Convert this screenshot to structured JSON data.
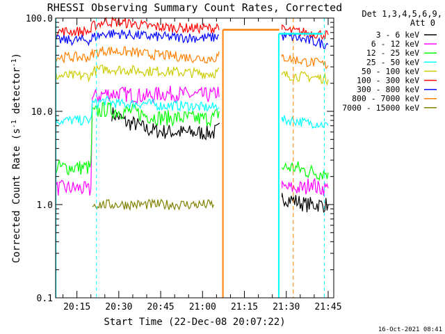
{
  "chart_data": {
    "type": "line",
    "title": "RHESSI Observing Summary Count Rates, Corrected",
    "xlabel": "Start Time (22-Dec-08 20:07:22)",
    "ylabel_main": "Corrected Count Rate (s",
    "ylabel_sup1": "-1",
    "ylabel_mid": " detector",
    "ylabel_sup2": "-1",
    "ylabel_end": ")",
    "yscale": "log",
    "ylim": [
      0.1,
      100.0
    ],
    "xlim_minutes": [
      7.37,
      107.0
    ],
    "y_ticks": [
      "0.1",
      "1.0",
      "10.0",
      "100.0"
    ],
    "x_ticks": [
      "20:15",
      "20:30",
      "20:45",
      "21:00",
      "21:15",
      "21:30",
      "21:45"
    ],
    "x_tick_minutes": [
      15,
      30,
      45,
      60,
      75,
      90,
      105
    ],
    "legend_header": [
      "Det 1,3,4,5,6,9,",
      "Att 0"
    ],
    "legend_position": "right",
    "grid": false,
    "footer": "16-Oct-2021 08:41",
    "series": [
      {
        "name": "3 - 6 keV",
        "color": "#000000",
        "points": [
          [
            27.5,
            9.5
          ],
          [
            30,
            8.7
          ],
          [
            33,
            7.5
          ],
          [
            36,
            7.3
          ],
          [
            40,
            6.4
          ],
          [
            45,
            6.1
          ],
          [
            50,
            6.0
          ],
          [
            55,
            5.9
          ],
          [
            60,
            5.9
          ],
          [
            64,
            5.9
          ],
          [
            66.5,
            6.5
          ],
          [
            88.5,
            1.2
          ],
          [
            93,
            1.1
          ],
          [
            97,
            1.0
          ],
          [
            101,
            1.0
          ],
          [
            105,
            1.0
          ]
        ]
      },
      {
        "name": "6 - 12 keV",
        "color": "#ff00ff",
        "points": [
          [
            7.5,
            1.5
          ],
          [
            12,
            1.5
          ],
          [
            16,
            1.5
          ],
          [
            20,
            1.4
          ],
          [
            20.5,
            14.0
          ],
          [
            25,
            15.5
          ],
          [
            30,
            15.5
          ],
          [
            35,
            15.0
          ],
          [
            40,
            14.5
          ],
          [
            45,
            15.5
          ],
          [
            50,
            15.5
          ],
          [
            55,
            15.0
          ],
          [
            60,
            14.8
          ],
          [
            64,
            15.0
          ],
          [
            66.3,
            17.0
          ],
          [
            88.5,
            1.5
          ],
          [
            93,
            1.5
          ],
          [
            97,
            1.5
          ],
          [
            99,
            1.8
          ],
          [
            101,
            1.5
          ],
          [
            105,
            1.5
          ]
        ]
      },
      {
        "name": "12 - 25 keV",
        "color": "#00ff00",
        "points": [
          [
            7.5,
            2.5
          ],
          [
            12,
            2.5
          ],
          [
            16,
            2.5
          ],
          [
            20,
            2.5
          ],
          [
            20.5,
            9.5
          ],
          [
            25,
            10.5
          ],
          [
            30,
            10.0
          ],
          [
            35,
            10.0
          ],
          [
            40,
            9.0
          ],
          [
            45,
            8.5
          ],
          [
            50,
            8.5
          ],
          [
            55,
            8.5
          ],
          [
            60,
            8.3
          ],
          [
            64,
            8.5
          ],
          [
            66.3,
            10.0
          ],
          [
            88.5,
            2.5
          ],
          [
            93,
            2.5
          ],
          [
            97,
            2.3
          ],
          [
            101,
            2.2
          ],
          [
            105,
            2.2
          ]
        ]
      },
      {
        "name": "25 - 50 keV",
        "color": "#00ffff",
        "points": [
          [
            7.5,
            8.0
          ],
          [
            12,
            8.0
          ],
          [
            16,
            8.0
          ],
          [
            20,
            8.0
          ],
          [
            20.5,
            12.0
          ],
          [
            25,
            13.0
          ],
          [
            30,
            12.0
          ],
          [
            35,
            12.0
          ],
          [
            40,
            12.2
          ],
          [
            45,
            11.5
          ],
          [
            50,
            11.5
          ],
          [
            55,
            11.5
          ],
          [
            60,
            11.0
          ],
          [
            64,
            11.0
          ],
          [
            66.3,
            12.0
          ],
          [
            88.5,
            8.0
          ],
          [
            93,
            8.0
          ],
          [
            97,
            7.5
          ],
          [
            101,
            7.5
          ],
          [
            105,
            7.0
          ]
        ]
      },
      {
        "name": "50 - 100 keV",
        "color": "#cccc00",
        "points": [
          [
            7.5,
            24.0
          ],
          [
            12,
            24.0
          ],
          [
            16,
            24.0
          ],
          [
            20,
            24.0
          ],
          [
            20.5,
            27.0
          ],
          [
            25,
            28.5
          ],
          [
            30,
            28.0
          ],
          [
            35,
            27.5
          ],
          [
            40,
            27.0
          ],
          [
            45,
            27.0
          ],
          [
            50,
            26.5
          ],
          [
            55,
            26.0
          ],
          [
            60,
            25.5
          ],
          [
            64,
            25.5
          ],
          [
            66.3,
            27.0
          ],
          [
            88.5,
            24.5
          ],
          [
            93,
            24.0
          ],
          [
            97,
            23.5
          ],
          [
            101,
            23.0
          ],
          [
            105,
            22.0
          ]
        ]
      },
      {
        "name": "100 - 300 keV",
        "color": "#ff0000",
        "points": [
          [
            7.5,
            72.0
          ],
          [
            12,
            72.0
          ],
          [
            16,
            72.0
          ],
          [
            20,
            72.0
          ],
          [
            20.5,
            82.0
          ],
          [
            25,
            92.0
          ],
          [
            30,
            90.0
          ],
          [
            35,
            87.0
          ],
          [
            40,
            82.0
          ],
          [
            45,
            80.0
          ],
          [
            50,
            79.0
          ],
          [
            55,
            78.0
          ],
          [
            60,
            78.0
          ],
          [
            64,
            78.0
          ],
          [
            66.3,
            85.0
          ],
          [
            88.5,
            75.0
          ],
          [
            93,
            72.0
          ],
          [
            97,
            70.0
          ],
          [
            101,
            68.0
          ],
          [
            105,
            66.0
          ]
        ]
      },
      {
        "name": "300 - 800 keV",
        "color": "#0000ff",
        "points": [
          [
            7.5,
            58.0
          ],
          [
            12,
            58.0
          ],
          [
            16,
            58.0
          ],
          [
            20,
            58.0
          ],
          [
            20.5,
            62.0
          ],
          [
            25,
            68.0
          ],
          [
            30,
            68.0
          ],
          [
            35,
            66.0
          ],
          [
            40,
            64.0
          ],
          [
            45,
            63.0
          ],
          [
            50,
            62.0
          ],
          [
            55,
            62.0
          ],
          [
            60,
            61.0
          ],
          [
            64,
            62.0
          ],
          [
            66.3,
            66.0
          ],
          [
            88.5,
            64.0
          ],
          [
            93,
            62.0
          ],
          [
            97,
            58.0
          ],
          [
            101,
            55.0
          ],
          [
            105,
            52.0
          ]
        ]
      },
      {
        "name": "800 - 7000 keV",
        "color": "#ff8000",
        "points": [
          [
            7.5,
            38.0
          ],
          [
            12,
            38.0
          ],
          [
            16,
            38.0
          ],
          [
            20,
            38.0
          ],
          [
            20.5,
            42.0
          ],
          [
            25,
            45.0
          ],
          [
            30,
            44.0
          ],
          [
            35,
            43.0
          ],
          [
            40,
            41.0
          ],
          [
            45,
            40.0
          ],
          [
            50,
            39.0
          ],
          [
            55,
            38.0
          ],
          [
            60,
            37.0
          ],
          [
            64,
            37.0
          ],
          [
            66.3,
            40.0
          ],
          [
            88.5,
            38.0
          ],
          [
            93,
            36.0
          ],
          [
            97,
            34.0
          ],
          [
            101,
            33.0
          ],
          [
            105,
            31.0
          ]
        ]
      },
      {
        "name": "7000 - 15000 keV",
        "color": "#808000",
        "points": [
          [
            20.5,
            1.0
          ],
          [
            30,
            1.0
          ],
          [
            40,
            1.0
          ],
          [
            50,
            1.0
          ],
          [
            60,
            1.0
          ],
          [
            64,
            1.0
          ]
        ]
      }
    ],
    "annotations": {
      "orange_step": {
        "color": "#ff8000",
        "y": 75.0,
        "x_start": 67.3,
        "x_end": 87.5,
        "drop_x": 67.3
      },
      "cyan_step": {
        "color": "#00ffff",
        "y": 68.0,
        "x_start": 87.3,
        "x_end": 103.0,
        "drop_x": 87.3
      },
      "cyan_solid_x": [
        7.5
      ],
      "cyan_dashed_x": [
        22.0,
        103.6
      ],
      "orange_dashed_x": [
        92.5
      ]
    }
  }
}
